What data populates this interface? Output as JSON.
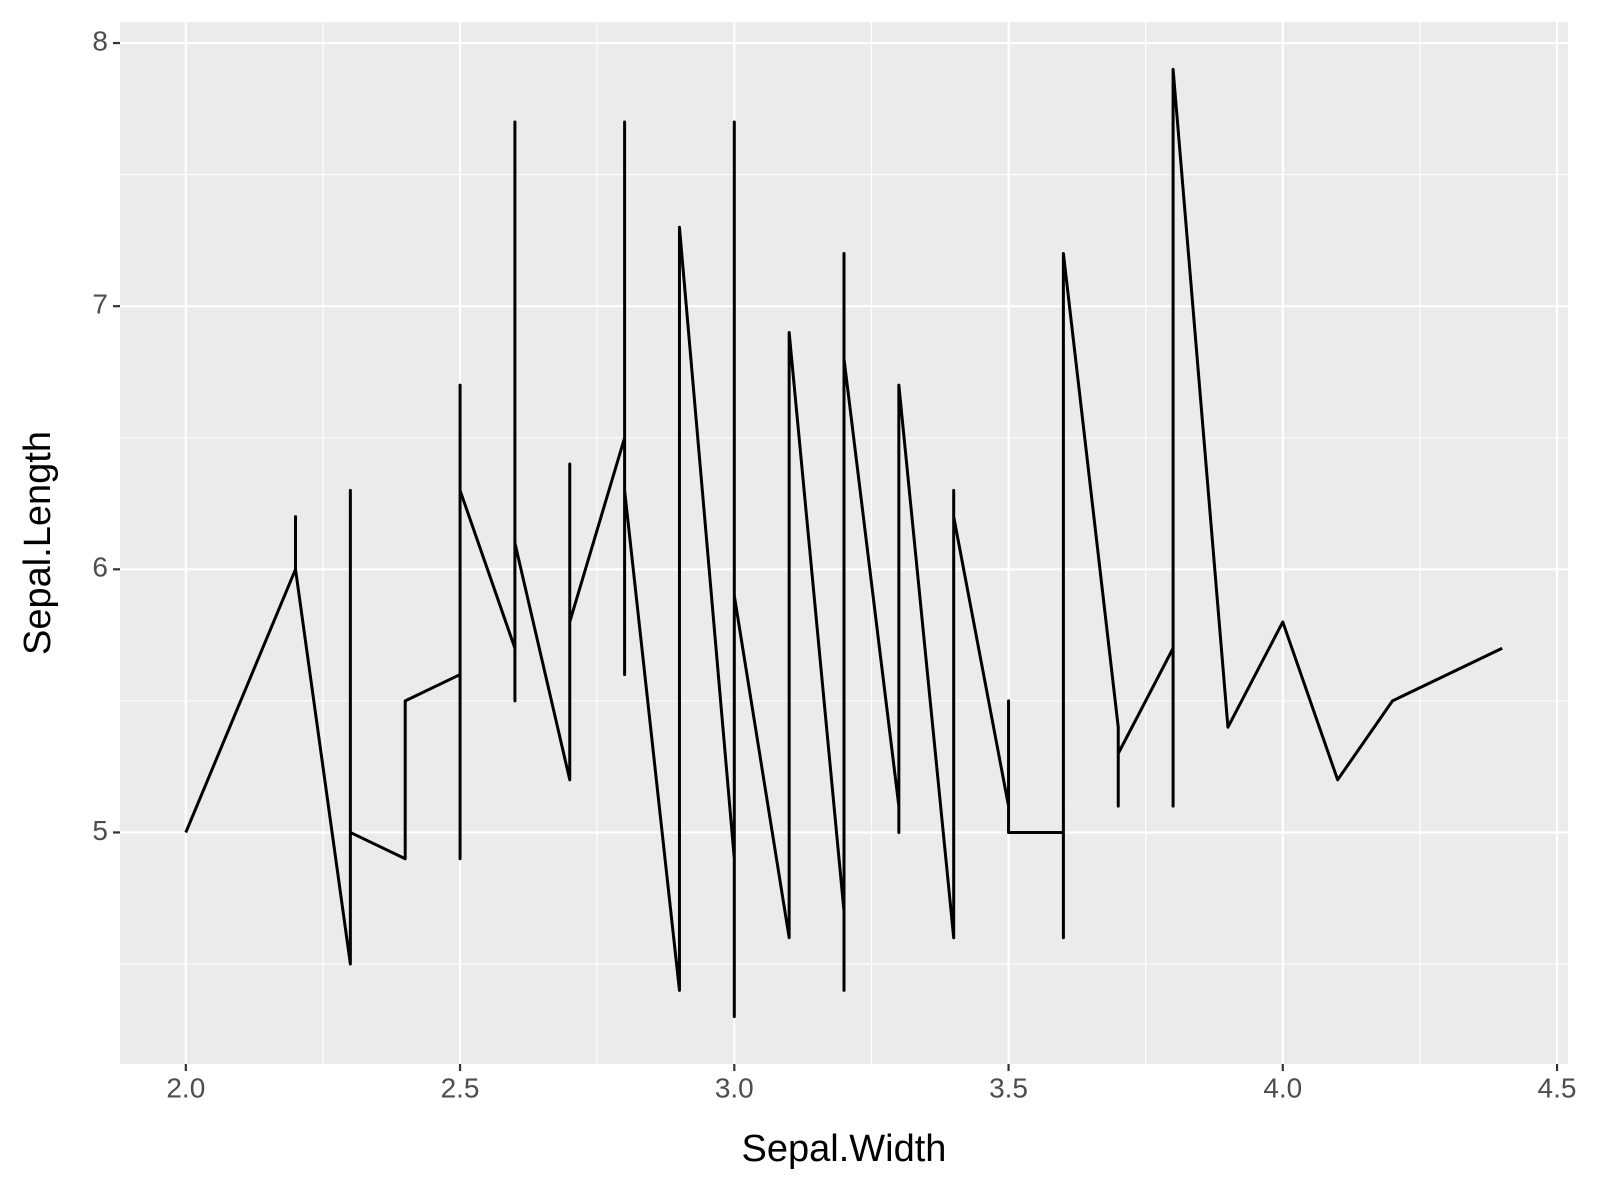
{
  "chart_data": {
    "type": "line",
    "x_label": "Sepal.Width",
    "y_label": "Sepal.Length",
    "x": [
      2.0,
      2.2,
      2.2,
      2.2,
      2.3,
      2.3,
      2.3,
      2.4,
      2.4,
      2.5,
      2.5,
      2.5,
      2.5,
      2.6,
      2.6,
      2.6,
      2.6,
      2.7,
      2.7,
      2.7,
      2.8,
      2.8,
      2.8,
      2.8,
      2.9,
      2.9,
      3.0,
      3.0,
      3.0,
      3.0,
      3.1,
      3.1,
      3.2,
      3.2,
      3.2,
      3.2,
      3.3,
      3.3,
      3.3,
      3.4,
      3.4,
      3.4,
      3.5,
      3.5,
      3.5,
      3.6,
      3.6,
      3.6,
      3.7,
      3.7,
      3.7,
      3.8,
      3.8,
      3.8,
      3.9,
      4.0,
      4.1,
      4.2,
      4.4
    ],
    "values": [
      5.0,
      6.0,
      6.2,
      6.0,
      4.5,
      6.3,
      5.0,
      4.9,
      5.5,
      5.6,
      4.9,
      6.7,
      6.3,
      5.7,
      5.5,
      7.7,
      6.1,
      5.2,
      6.4,
      5.8,
      6.5,
      5.6,
      7.7,
      6.3,
      4.4,
      7.3,
      4.9,
      4.3,
      7.7,
      5.9,
      4.6,
      6.9,
      4.7,
      4.4,
      7.2,
      6.8,
      5.1,
      5.0,
      6.7,
      4.6,
      6.3,
      6.2,
      5.1,
      5.5,
      5.0,
      5.0,
      4.6,
      7.2,
      5.4,
      5.1,
      5.3,
      5.7,
      5.1,
      7.9,
      5.4,
      5.8,
      5.2,
      5.5,
      5.7
    ],
    "color": "#000000",
    "xlim": [
      1.88,
      4.52
    ],
    "ylim": [
      4.12,
      8.08
    ],
    "xticks": [
      {
        "value": 2.0,
        "label": "2.0"
      },
      {
        "value": 2.5,
        "label": "2.5"
      },
      {
        "value": 3.0,
        "label": "3.0"
      },
      {
        "value": 3.5,
        "label": "3.5"
      },
      {
        "value": 4.0,
        "label": "4.0"
      },
      {
        "value": 4.5,
        "label": "4.5"
      }
    ],
    "yticks": [
      5,
      6,
      7,
      8
    ],
    "grid": true
  }
}
